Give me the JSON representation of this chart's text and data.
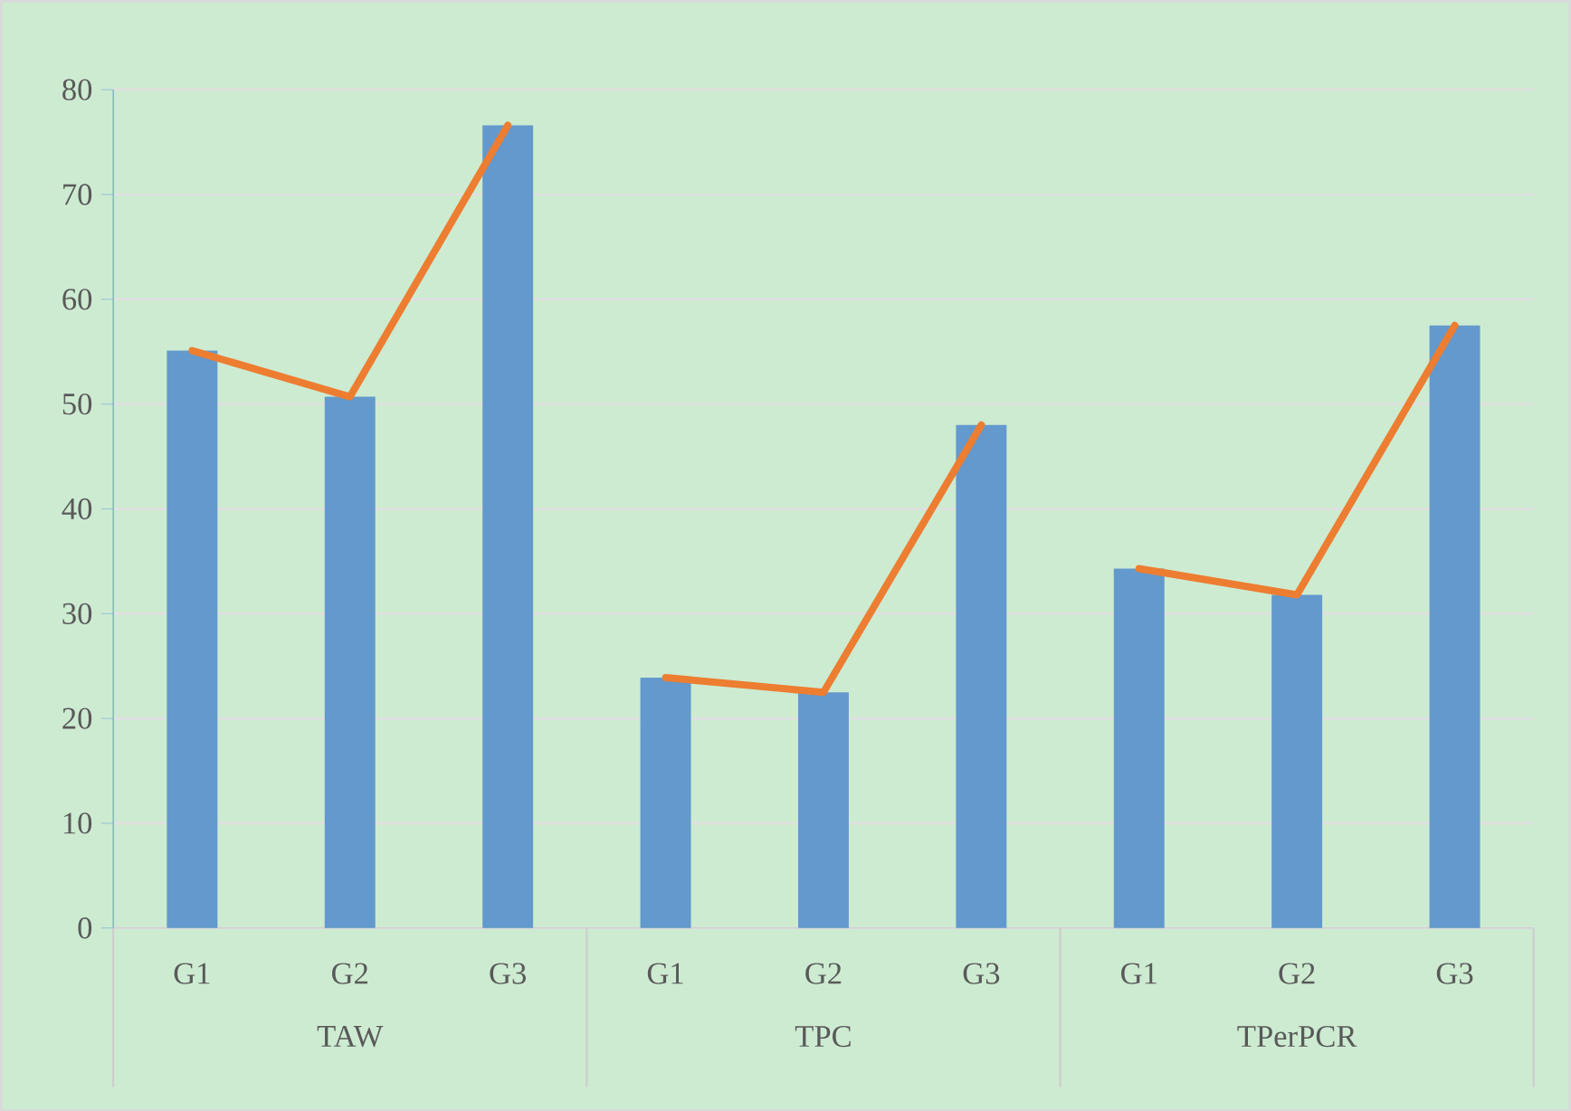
{
  "chart_data": {
    "type": "bar",
    "categories": [
      "G1",
      "G2",
      "G3",
      "G1",
      "G2",
      "G3",
      "G1",
      "G2",
      "G3"
    ],
    "series": [
      {
        "color": "#6399cc",
        "values": [
          55.1,
          50.7,
          76.6,
          23.9,
          22.5,
          48.0,
          34.3,
          31.8,
          57.5
        ]
      },
      {
        "type": "line",
        "color": "#ed7d31",
        "values": [
          55.1,
          50.7,
          76.6,
          null,
          null,
          null,
          null,
          null,
          null
        ]
      },
      {
        "type": "line",
        "color": "#ed7d31",
        "values": [
          null,
          null,
          null,
          23.9,
          22.5,
          48.0,
          null,
          null,
          null
        ]
      },
      {
        "type": "line",
        "color": "#ed7d31",
        "values": [
          null,
          null,
          null,
          null,
          null,
          null,
          34.3,
          31.8,
          57.5
        ]
      }
    ],
    "annotations": [
      "TAW",
      "TPC",
      "TPerPCR"
    ],
    "ylim": [
      0,
      80
    ],
    "yticks": [
      0,
      10,
      20,
      30,
      40,
      50,
      60,
      70,
      80
    ],
    "grid": "y"
  }
}
